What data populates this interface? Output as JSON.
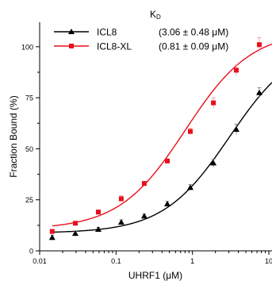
{
  "chart_data": {
    "type": "scatter",
    "title": "",
    "xlabel": "UHRF1 (μM)",
    "ylabel": "Fraction Bound (%)",
    "xscale": "log",
    "xlim": [
      0.01,
      11
    ],
    "ylim": [
      0,
      112
    ],
    "xticks": [
      0.01,
      0.1,
      1,
      10
    ],
    "xtick_labels": [
      "0.01",
      "0.1",
      "1",
      "10"
    ],
    "yticks": [
      0,
      25,
      50,
      75,
      100
    ],
    "ytick_labels": [
      "0",
      "25",
      "50",
      "75",
      "100"
    ],
    "grid": false,
    "legend": {
      "placement": "top-left",
      "header": "K",
      "header_sub": "D"
    },
    "series": [
      {
        "name": "ICL8",
        "kd_label": "(3.06 ± 0.48 μM)",
        "color": "#000000",
        "marker": "triangle",
        "x": [
          0.0146,
          0.0293,
          0.0586,
          0.117,
          0.234,
          0.469,
          0.938,
          1.88,
          3.75,
          7.5
        ],
        "y": [
          6.5,
          8.5,
          10.5,
          14,
          17,
          23,
          31,
          43,
          59.5,
          77.5
        ],
        "err": [
          1.2,
          1.2,
          1.0,
          1.2,
          1.0,
          1.2,
          1.5,
          2.0,
          2.5,
          2.5
        ],
        "fit": {
          "bottom": 8.7,
          "top": 103,
          "kd": 3.06
        }
      },
      {
        "name": "ICL8-XL",
        "kd_label": "(0.81 ± 0.09 μM)",
        "color": "#e8101c",
        "marker": "square",
        "x": [
          0.0146,
          0.0293,
          0.0586,
          0.117,
          0.234,
          0.469,
          0.938,
          1.88,
          3.75,
          7.5
        ],
        "y": [
          9.5,
          13.5,
          19,
          25.5,
          33,
          44,
          58.5,
          72.5,
          88.5,
          101
        ],
        "err": [
          1.0,
          1.0,
          1.0,
          1.5,
          1.0,
          1.0,
          1.5,
          2.5,
          2.5,
          3.5
        ],
        "fit": {
          "bottom": 10.5,
          "top": 108,
          "kd": 0.81
        }
      }
    ]
  }
}
